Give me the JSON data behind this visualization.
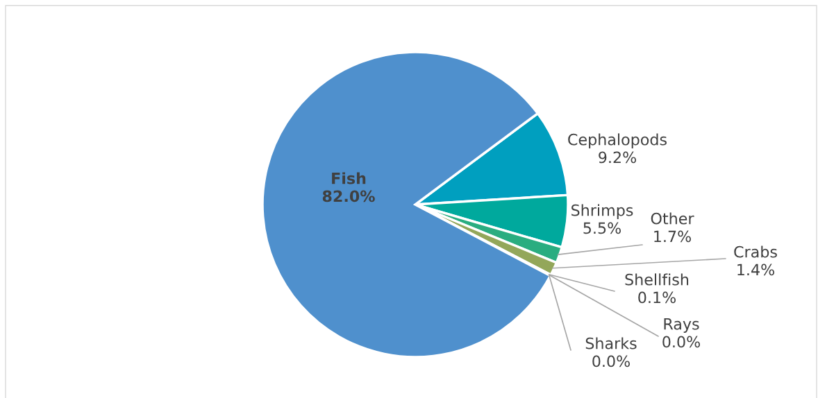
{
  "chart_data": {
    "type": "pie",
    "categories": [
      "Cephalopods",
      "Shrimps",
      "Other",
      "Crabs",
      "Shellfish",
      "Rays",
      "Sharks",
      "Fish"
    ],
    "values": [
      9.2,
      5.5,
      1.7,
      1.4,
      0.1,
      0.0,
      0.0,
      82.0
    ],
    "colors": [
      "#009fbf",
      "#00a99d",
      "#2aad80",
      "#93a75a",
      "#4f90cd",
      "#4f90cd",
      "#4f90cd",
      "#4f90cd"
    ],
    "value_labels": [
      "9.2%",
      "5.5%",
      "1.7%",
      "1.4%",
      "0.1%",
      "0.0%",
      "0.0%",
      "82.0%"
    ]
  }
}
